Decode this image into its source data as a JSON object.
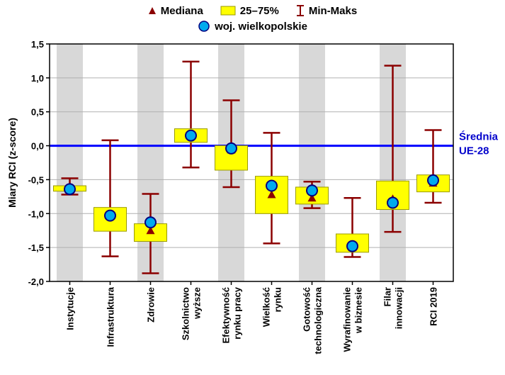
{
  "legend": {
    "median_label": "Mediana",
    "iqr_label": "25–75%",
    "minmax_label": "Min-Maks",
    "region_label": "woj. wielkopolskie"
  },
  "chart_data": {
    "type": "box",
    "ylabel": "Miary RCI (z-score)",
    "ylim": [
      -2.0,
      1.5
    ],
    "yticks": [
      1.5,
      1.0,
      0.5,
      0.0,
      -0.5,
      -1.0,
      -1.5,
      -2.0
    ],
    "ytick_labels": [
      "1,5",
      "1,0",
      "0,5",
      "0,0",
      "-0,5",
      "-1,0",
      "-1,5",
      "-2,0"
    ],
    "grid": true,
    "legend_position": "top",
    "reference_line": {
      "value": 0.0,
      "label_lines": [
        "Średnia",
        "UE-28"
      ],
      "color": "#0000ff"
    },
    "colors": {
      "box_fill": "#ffff00",
      "box_stroke": "#9a9a00",
      "whisker": "#8b0000",
      "median": "#8b0000",
      "point_fill": "#00aaee",
      "point_stroke": "#000080",
      "band": "#d8d8d8",
      "grid": "#b0b0b0"
    },
    "categories": [
      [
        "Instytucje"
      ],
      [
        "Infrastruktura"
      ],
      [
        "Zdrowie"
      ],
      [
        "Szkolnictwo",
        "wyższe"
      ],
      [
        "Efektywność",
        "rynku pracy"
      ],
      [
        "Wielkość",
        "rynku"
      ],
      [
        "Gotowość",
        "technologiczna"
      ],
      [
        "Wyrafinowanie",
        "w biznesie"
      ],
      [
        "Filar",
        "innowacji"
      ],
      [
        "RCI 2019"
      ]
    ],
    "series": [
      {
        "name": "Min-Maks",
        "min": [
          -0.72,
          -1.63,
          -1.88,
          -0.32,
          -0.61,
          -1.44,
          -0.92,
          -1.64,
          -1.27,
          -0.84
        ],
        "max": [
          -0.48,
          0.08,
          -0.71,
          1.24,
          0.67,
          0.19,
          -0.53,
          -0.77,
          1.18,
          0.23
        ]
      },
      {
        "name": "25–75%",
        "q1": [
          -0.67,
          -1.26,
          -1.41,
          0.05,
          -0.36,
          -1.0,
          -0.86,
          -1.57,
          -0.94,
          -0.68
        ],
        "q3": [
          -0.59,
          -0.91,
          -1.15,
          0.25,
          0.0,
          -0.45,
          -0.61,
          -1.3,
          -0.52,
          -0.43
        ]
      },
      {
        "name": "Mediana",
        "values": [
          -0.64,
          -1.03,
          -1.25,
          0.15,
          -0.06,
          -0.72,
          -0.77,
          -1.5,
          -0.78,
          -0.55
        ]
      },
      {
        "name": "woj. wielkopolskie",
        "values": [
          -0.64,
          -1.03,
          -1.13,
          0.15,
          -0.04,
          -0.59,
          -0.66,
          -1.48,
          -0.84,
          -0.51
        ]
      }
    ]
  }
}
